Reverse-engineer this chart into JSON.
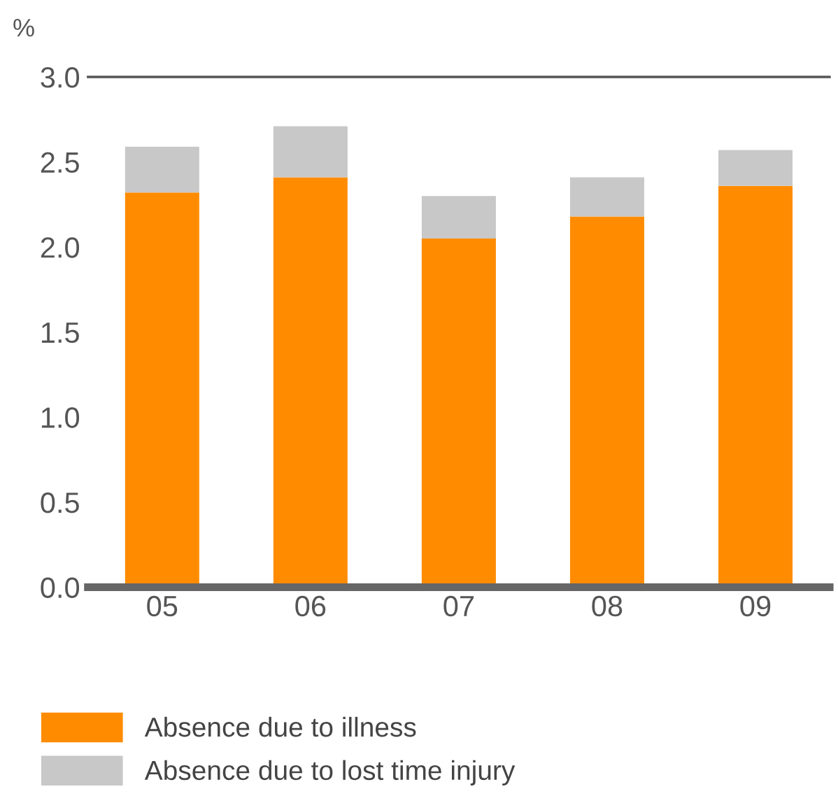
{
  "chart_data": {
    "type": "bar",
    "stacked": true,
    "ylabel": "%",
    "categories": [
      "05",
      "06",
      "07",
      "08",
      "09"
    ],
    "series": [
      {
        "name": "Absence due to illness",
        "color": "#ff8c00",
        "values": [
          2.32,
          2.41,
          2.05,
          2.18,
          2.36
        ]
      },
      {
        "name": "Absence due to lost time injury",
        "color": "#c8c8c8",
        "values": [
          0.27,
          0.3,
          0.25,
          0.23,
          0.21
        ]
      }
    ],
    "ylim": [
      0,
      3.0
    ],
    "yticks": [
      {
        "value": 0,
        "label": "0.0"
      },
      {
        "value": 0.5,
        "label": "0.5"
      },
      {
        "value": 1,
        "label": "1.0"
      },
      {
        "value": 1.5,
        "label": "1.5"
      },
      {
        "value": 2,
        "label": "2.0"
      },
      {
        "value": 2.5,
        "label": "2.5"
      },
      {
        "value": 3,
        "label": "3.0"
      }
    ],
    "grid": false,
    "legend": "bottom left"
  }
}
